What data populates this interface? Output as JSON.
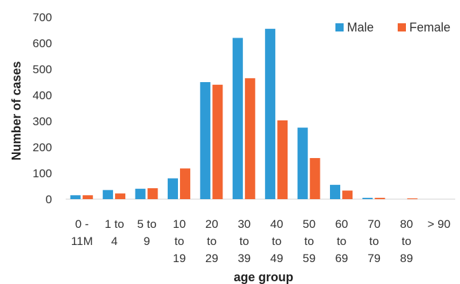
{
  "chart_data": {
    "type": "bar",
    "title": "",
    "xlabel": "age group",
    "ylabel": "Number of cases",
    "ylim": [
      0,
      700
    ],
    "yticks": [
      0,
      100,
      200,
      300,
      400,
      500,
      600,
      700
    ],
    "grid": false,
    "legend_position": "top-right",
    "categories": [
      [
        "0 -",
        "11M"
      ],
      [
        "1 to",
        "4"
      ],
      [
        "5 to",
        "9"
      ],
      [
        "10",
        "to",
        "19"
      ],
      [
        "20",
        "to",
        "29"
      ],
      [
        "30",
        "to",
        "39"
      ],
      [
        "40",
        "to",
        "49"
      ],
      [
        "50",
        "to",
        "59"
      ],
      [
        "60",
        "to",
        "69"
      ],
      [
        "70",
        "to",
        "79"
      ],
      [
        "80",
        "to",
        "89"
      ],
      [
        "> 90"
      ]
    ],
    "series": [
      {
        "name": "Male",
        "color": "#2E9BD6",
        "values": [
          15,
          35,
          40,
          80,
          450,
          620,
          655,
          275,
          55,
          5,
          0,
          0
        ]
      },
      {
        "name": "Female",
        "color": "#F26430",
        "values": [
          15,
          22,
          42,
          118,
          440,
          465,
          303,
          158,
          33,
          5,
          3,
          0
        ]
      }
    ]
  }
}
